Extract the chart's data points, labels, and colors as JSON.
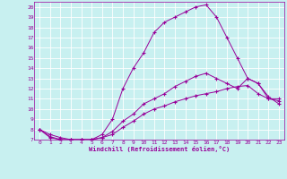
{
  "xlabel": "Windchill (Refroidissement éolien,°C)",
  "bg_color": "#c8f0f0",
  "line_color": "#990099",
  "grid_color": "#ffffff",
  "ylim": [
    7,
    20.5
  ],
  "xlim": [
    -0.5,
    23.5
  ],
  "yticks": [
    7,
    8,
    9,
    10,
    11,
    12,
    13,
    14,
    15,
    16,
    17,
    18,
    19,
    20
  ],
  "xticks": [
    0,
    1,
    2,
    3,
    4,
    5,
    6,
    7,
    8,
    9,
    10,
    11,
    12,
    13,
    14,
    15,
    16,
    17,
    18,
    19,
    20,
    21,
    22,
    23
  ],
  "line1_x": [
    0,
    1,
    2,
    3,
    4,
    5,
    6,
    7,
    8,
    9,
    10,
    11,
    12,
    13,
    14,
    15,
    16,
    17,
    18,
    19,
    20,
    21,
    22,
    23
  ],
  "line1_y": [
    8.0,
    7.5,
    7.2,
    7.0,
    7.0,
    7.0,
    7.5,
    9.0,
    12.0,
    14.0,
    15.5,
    17.5,
    18.5,
    19.0,
    19.5,
    20.0,
    20.2,
    19.0,
    17.0,
    15.0,
    13.0,
    12.5,
    11.2,
    10.5
  ],
  "line2_x": [
    0,
    1,
    2,
    3,
    4,
    5,
    6,
    7,
    8,
    9,
    10,
    11,
    12,
    13,
    14,
    15,
    16,
    17,
    18,
    19,
    20,
    21,
    22,
    23
  ],
  "line2_y": [
    8.0,
    7.3,
    7.0,
    7.0,
    7.0,
    7.0,
    7.2,
    7.8,
    8.8,
    9.5,
    10.5,
    11.0,
    11.5,
    12.2,
    12.7,
    13.2,
    13.5,
    13.0,
    12.5,
    12.0,
    13.0,
    12.5,
    11.0,
    10.8
  ],
  "line3_x": [
    0,
    1,
    2,
    3,
    4,
    5,
    6,
    7,
    8,
    9,
    10,
    11,
    12,
    13,
    14,
    15,
    16,
    17,
    18,
    19,
    20,
    21,
    22,
    23
  ],
  "line3_y": [
    8.0,
    7.2,
    7.0,
    7.0,
    7.0,
    7.0,
    7.2,
    7.5,
    8.2,
    8.8,
    9.5,
    10.0,
    10.3,
    10.7,
    11.0,
    11.3,
    11.5,
    11.7,
    12.0,
    12.2,
    12.3,
    11.5,
    11.0,
    11.0
  ]
}
